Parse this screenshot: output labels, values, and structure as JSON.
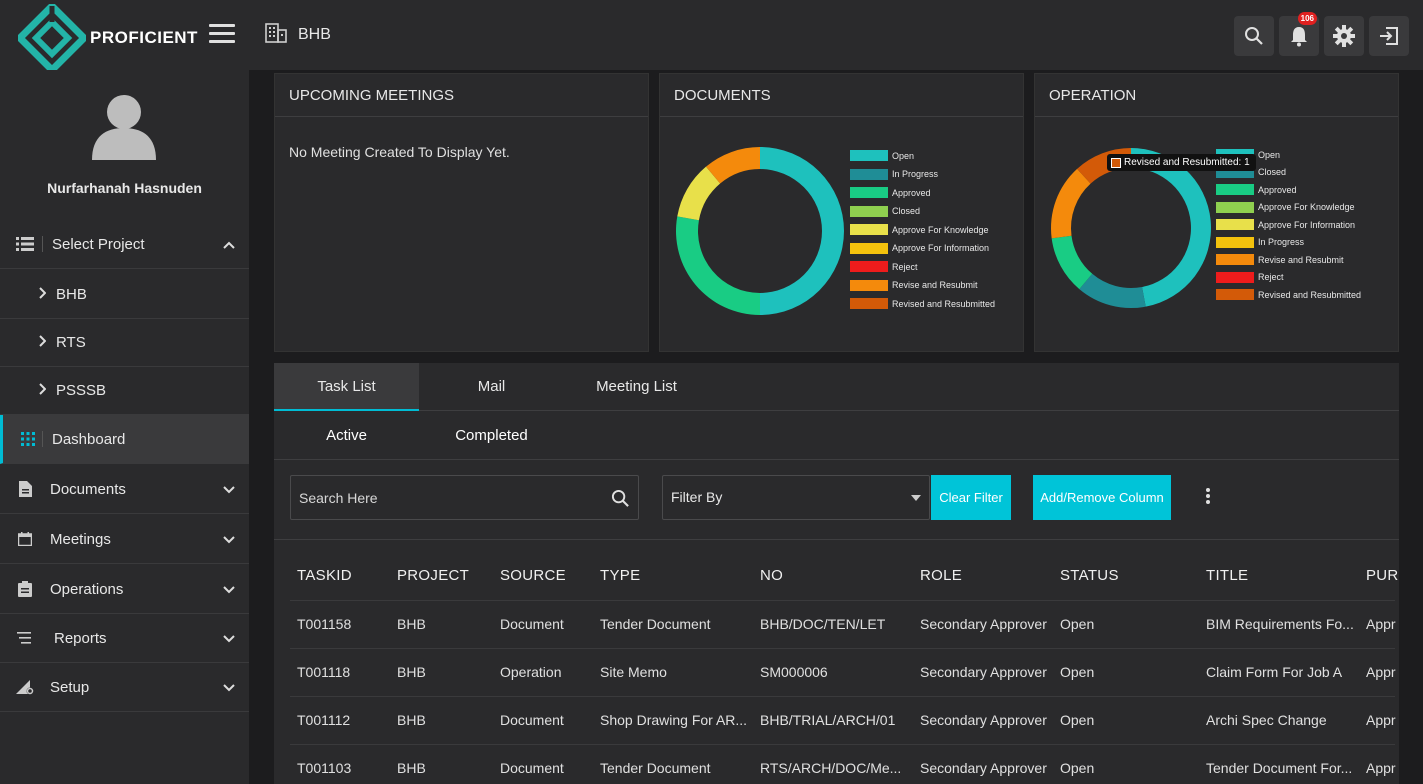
{
  "header": {
    "brand": "PROFICIENT",
    "project": "BHB",
    "notification_count": "106"
  },
  "sidebar": {
    "username": "Nurfarhanah Hasnuden",
    "select_project": "Select Project",
    "projects": [
      "BHB",
      "RTS",
      "PSSSB"
    ],
    "items": [
      {
        "label": "Dashboard"
      },
      {
        "label": "Documents"
      },
      {
        "label": "Meetings"
      },
      {
        "label": "Operations"
      },
      {
        "label": "Reports"
      },
      {
        "label": "Setup"
      }
    ]
  },
  "cards": {
    "meetings": {
      "title": "UPCOMING MEETINGS",
      "empty": "No Meeting Created To Display Yet."
    },
    "documents": {
      "title": "DOCUMENTS"
    },
    "operation": {
      "title": "OPERATION",
      "tooltip": "Revised and Resubmitted: 1"
    }
  },
  "chart_data": [
    {
      "type": "pie",
      "title": "DOCUMENTS",
      "labels": [
        "Open",
        "In Progress",
        "Approved",
        "Closed",
        "Approve For Knowledge",
        "Approve For Information",
        "Reject",
        "Revise and Resubmit",
        "Revised and Resubmitted"
      ],
      "colors": [
        "#1ec1bd",
        "#1f8d96",
        "#19cc84",
        "#8fcf4f",
        "#e8e04a",
        "#f4c20d",
        "#ee1c1c",
        "#f48a0c",
        "#d35a08"
      ],
      "values": [
        9,
        0,
        5,
        0,
        2,
        0,
        0,
        2,
        0
      ]
    },
    {
      "type": "pie",
      "title": "OPERATION",
      "labels": [
        "Open",
        "Closed",
        "Approved",
        "Approve For Knowledge",
        "Approve For Information",
        "In Progress",
        "Revise and Resubmit",
        "Reject",
        "Revised and Resubmitted"
      ],
      "colors": [
        "#1ec1bd",
        "#1f8d96",
        "#19cc84",
        "#8fcf4f",
        "#e8e04a",
        "#f4c20d",
        "#f48a0c",
        "#ee1c1c",
        "#d35a08"
      ],
      "values": [
        4,
        1.2,
        1,
        0,
        0,
        0,
        1.3,
        0,
        1
      ]
    }
  ],
  "tasks": {
    "tabs": [
      "Task List",
      "Mail",
      "Meeting List"
    ],
    "subtabs": [
      "Active",
      "Completed"
    ],
    "search_placeholder": "Search Here",
    "filter_label": "Filter By",
    "clear_filter": "Clear Filter",
    "add_remove_column": "Add/Remove Column",
    "columns": [
      "TASKID",
      "PROJECT",
      "SOURCE",
      "TYPE",
      "NO",
      "ROLE",
      "STATUS",
      "TITLE",
      "PUR"
    ],
    "rows": [
      [
        "T001158",
        "BHB",
        "Document",
        "Tender Document",
        "BHB/DOC/TEN/LET",
        "Secondary Approver",
        "Open",
        "BIM Requirements Fo...",
        "Appr"
      ],
      [
        "T001118",
        "BHB",
        "Operation",
        "Site Memo",
        "SM000006",
        "Secondary Approver",
        "Open",
        "Claim Form For Job A",
        "Appr"
      ],
      [
        "T001112",
        "BHB",
        "Document",
        "Shop Drawing For AR...",
        "BHB/TRIAL/ARCH/01",
        "Secondary Approver",
        "Open",
        "Archi Spec Change",
        "Appr"
      ],
      [
        "T001103",
        "BHB",
        "Document",
        "Tender Document",
        "RTS/ARCH/DOC/Me...",
        "Secondary Approver",
        "Open",
        "Tender Document For...",
        "Appr"
      ]
    ]
  }
}
